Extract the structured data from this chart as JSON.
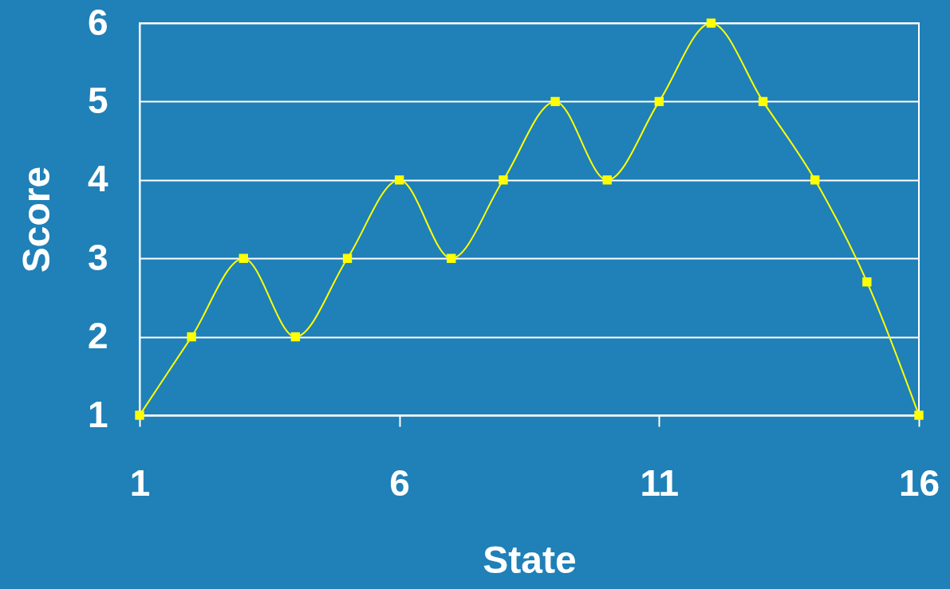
{
  "chart_data": {
    "type": "line",
    "xlabel": "State",
    "ylabel": "Score",
    "x": [
      1,
      2,
      3,
      4,
      5,
      6,
      7,
      8,
      9,
      10,
      11,
      12,
      13,
      14,
      15,
      16
    ],
    "series": [
      {
        "color": "#ffff00",
        "values": [
          1,
          2,
          3,
          2,
          3,
          4,
          3,
          4,
          5,
          4,
          5,
          6,
          5,
          4,
          2.7,
          1
        ]
      }
    ],
    "xlim": [
      1,
      16
    ],
    "xticks": [
      1,
      6,
      11,
      16
    ],
    "ylim": [
      1,
      6
    ],
    "yticks": [
      1,
      2,
      3,
      4,
      5,
      6
    ],
    "grid": "y",
    "marker": "square",
    "line_style": "solid"
  }
}
